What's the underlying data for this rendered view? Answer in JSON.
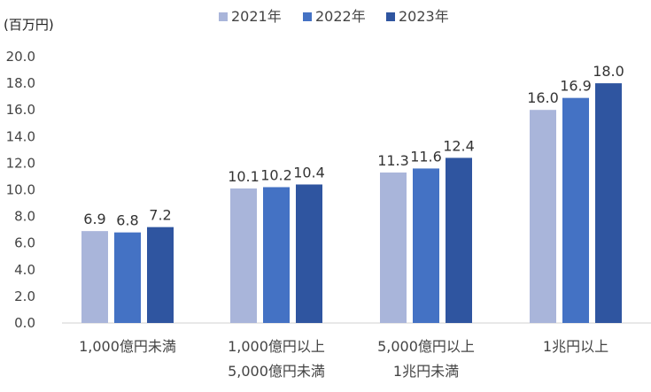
{
  "chart_data": {
    "type": "bar",
    "unit_label": "(百万円)",
    "categories": [
      [
        "1,000億円未満"
      ],
      [
        "1,000億円以上",
        "5,000億円未満"
      ],
      [
        "5,000億円以上",
        "1兆円未満"
      ],
      [
        "1兆円以上"
      ]
    ],
    "series": [
      {
        "name": "2021年",
        "color": "#A9B5DA",
        "values": [
          6.9,
          10.1,
          11.3,
          16.0
        ]
      },
      {
        "name": "2022年",
        "color": "#4472C4",
        "values": [
          6.8,
          10.2,
          11.6,
          16.9
        ]
      },
      {
        "name": "2023年",
        "color": "#2F55A0",
        "values": [
          7.2,
          10.4,
          12.4,
          18.0
        ]
      }
    ],
    "data_labels": [
      [
        "6.9",
        "10.1",
        "11.3",
        "16.0"
      ],
      [
        "6.8",
        "10.2",
        "11.6",
        "16.9"
      ],
      [
        "7.2",
        "10.4",
        "12.4",
        "18.0"
      ]
    ],
    "ylim": [
      0,
      20
    ],
    "yticks": [
      "0.0",
      "2.0",
      "4.0",
      "6.0",
      "8.0",
      "10.0",
      "12.0",
      "14.0",
      "16.0",
      "18.0",
      "20.0"
    ],
    "grid": false,
    "legend_position": "top"
  }
}
